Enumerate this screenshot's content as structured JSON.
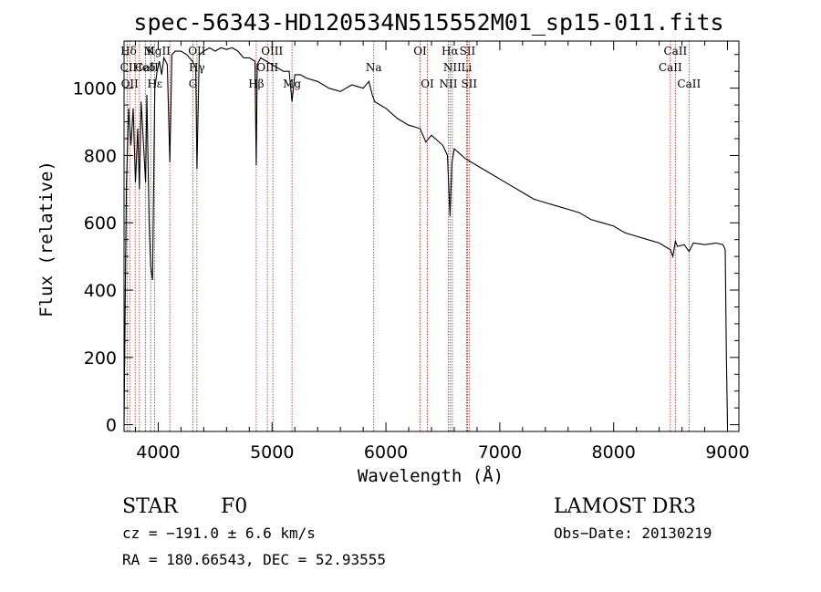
{
  "chart_data": {
    "type": "line",
    "title": "spec-56343-HD120534N515552M01_sp15-011.fits",
    "xlabel": "Wavelength (Å)",
    "ylabel": "Flux (relative)",
    "xlim": [
      3700,
      9100
    ],
    "ylim": [
      -20,
      1140
    ],
    "xticks": [
      4000,
      5000,
      6000,
      7000,
      8000,
      9000
    ],
    "yticks": [
      0,
      200,
      400,
      600,
      800,
      1000
    ],
    "series": [
      {
        "name": "spectrum",
        "x": [
          3700,
          3720,
          3740,
          3760,
          3780,
          3800,
          3820,
          3835,
          3850,
          3870,
          3889,
          3900,
          3920,
          3934,
          3950,
          3970,
          3990,
          4010,
          4030,
          4050,
          4080,
          4102,
          4120,
          4150,
          4200,
          4250,
          4300,
          4330,
          4340,
          4360,
          4400,
          4450,
          4500,
          4550,
          4600,
          4650,
          4700,
          4750,
          4800,
          4850,
          4861,
          4870,
          4900,
          4950,
          5000,
          5050,
          5100,
          5150,
          5175,
          5200,
          5250,
          5300,
          5400,
          5500,
          5600,
          5700,
          5800,
          5850,
          5880,
          5900,
          5950,
          6000,
          6100,
          6200,
          6300,
          6350,
          6400,
          6500,
          6540,
          6563,
          6580,
          6600,
          6700,
          6800,
          6900,
          7000,
          7100,
          7200,
          7300,
          7400,
          7500,
          7600,
          7700,
          7800,
          7900,
          8000,
          8100,
          8200,
          8300,
          8400,
          8498,
          8520,
          8542,
          8560,
          8620,
          8662,
          8700,
          8800,
          8900,
          8960,
          8980,
          8990,
          8995,
          9000
        ],
        "y": [
          0,
          700,
          940,
          830,
          940,
          720,
          880,
          700,
          960,
          840,
          720,
          980,
          600,
          470,
          430,
          1000,
          1050,
          1080,
          1040,
          1090,
          1070,
          780,
          1100,
          1110,
          1110,
          1100,
          1080,
          1060,
          760,
          1100,
          1110,
          1120,
          1110,
          1120,
          1115,
          1120,
          1110,
          1090,
          1090,
          1080,
          770,
          1070,
          1090,
          1080,
          1070,
          1060,
          1050,
          1050,
          960,
          1040,
          1040,
          1030,
          1020,
          1000,
          990,
          1010,
          1000,
          1020,
          980,
          960,
          950,
          940,
          910,
          890,
          880,
          840,
          860,
          830,
          800,
          620,
          780,
          820,
          790,
          770,
          750,
          730,
          710,
          690,
          670,
          660,
          650,
          640,
          630,
          610,
          600,
          590,
          570,
          560,
          550,
          540,
          520,
          500,
          545,
          530,
          535,
          515,
          540,
          535,
          540,
          535,
          520,
          200,
          100,
          0
        ]
      }
    ],
    "lines": [
      {
        "label": "Hδ",
        "wl": 3740,
        "row": 0
      },
      {
        "label": "CII",
        "wl": 3740,
        "row": 1
      },
      {
        "label": "OII",
        "wl": 3750,
        "row": 2
      },
      {
        "label": "K",
        "wl": 3934,
        "row": 0
      },
      {
        "label": "MgII",
        "wl": 3990,
        "row": 0
      },
      {
        "label": "Heδ",
        "wl": 3875,
        "row": 1
      },
      {
        "label": "Hε",
        "wl": 3970,
        "row": 2
      },
      {
        "label": "CaII",
        "wl": 3900,
        "row": 1
      },
      {
        "label": "OII",
        "wl": 4340,
        "row": 0
      },
      {
        "label": "G",
        "wl": 4305,
        "row": 2
      },
      {
        "label": "Hγ",
        "wl": 4340,
        "row": 1
      },
      {
        "label": "OIII",
        "wl": 5000,
        "row": 0
      },
      {
        "label": "OIII",
        "wl": 4960,
        "row": 1
      },
      {
        "label": "Hβ",
        "wl": 4861,
        "row": 2
      },
      {
        "label": "Mg",
        "wl": 5175,
        "row": 2
      },
      {
        "label": "Na",
        "wl": 5893,
        "row": 1
      },
      {
        "label": "OI",
        "wl": 6300,
        "row": 0
      },
      {
        "label": "OI",
        "wl": 6364,
        "row": 2
      },
      {
        "label": "Hα",
        "wl": 6563,
        "row": 0
      },
      {
        "label": "NII",
        "wl": 6583,
        "row": 1
      },
      {
        "label": "NII",
        "wl": 6548,
        "row": 2
      },
      {
        "label": "SII",
        "wl": 6716,
        "row": 0
      },
      {
        "label": "Li",
        "wl": 6708,
        "row": 1
      },
      {
        "label": "SII",
        "wl": 6731,
        "row": 2
      },
      {
        "label": "CaII",
        "wl": 8542,
        "row": 0
      },
      {
        "label": "CaII",
        "wl": 8498,
        "row": 1
      },
      {
        "label": "CaII",
        "wl": 8662,
        "row": 2
      }
    ],
    "line_wavelengths": [
      3727,
      3750,
      3798,
      3835,
      3889,
      3934,
      3969,
      4102,
      4305,
      4340,
      4861,
      4959,
      5007,
      5175,
      5893,
      6300,
      6364,
      6548,
      6563,
      6583,
      6708,
      6716,
      6731,
      8498,
      8542,
      8662
    ]
  },
  "info": {
    "class_label": "STAR",
    "subclass": "F0",
    "survey": "LAMOST DR3",
    "cz": "cz = −191.0 ± 6.6 km/s",
    "obs_date": "Obs−Date: 20130219",
    "coords": "RA = 180.66543, DEC =  52.93555"
  },
  "colors": {
    "axis": "#000000",
    "spectrum": "#000000",
    "line_marker": "#c0392b"
  }
}
